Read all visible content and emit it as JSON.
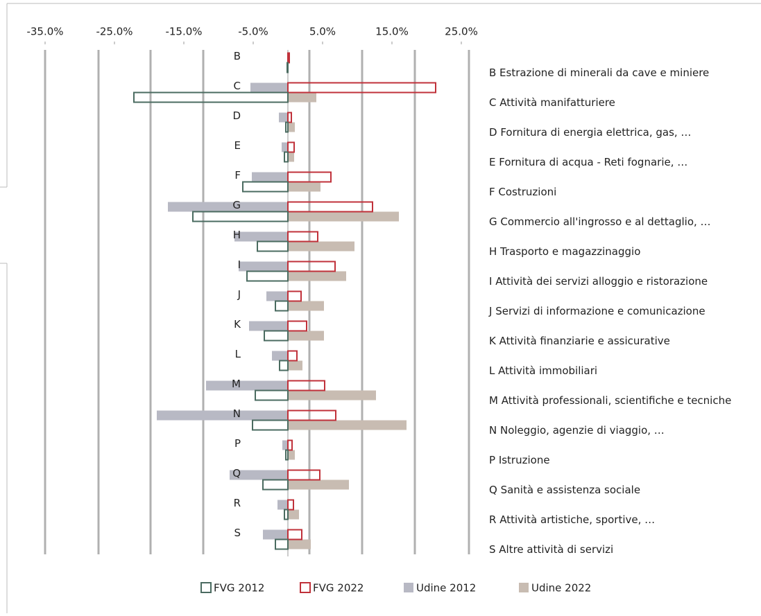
{
  "chart_data": {
    "type": "hbar",
    "categories": [
      "B",
      "C",
      "D",
      "E",
      "F",
      "G",
      "H",
      "I",
      "J",
      "K",
      "L",
      "M",
      "N",
      "P",
      "Q",
      "R",
      "S"
    ],
    "descriptions": [
      "B Estrazione di minerali da cave e miniere",
      "C Attività manifatturiere",
      "D Fornitura di energia elettrica, gas, …",
      "E Fornitura di acqua - Reti fognarie, …",
      "F Costruzioni",
      "G Commercio all'ingrosso e al dettaglio, …",
      "H Trasporto e magazzinaggio",
      "I Attività dei servizi alloggio e ristorazione",
      "J Servizi di informazione e comunicazione",
      "K Attività finanziarie e assicurative",
      "L Attività immobiliari",
      "M Attività professionali, scientifiche e tecniche",
      "N Noleggio, agenzie di viaggio, …",
      "P Istruzione",
      "Q Sanità e assistenza sociale",
      "R Attività artistiche, sportive, …",
      "S Altre attività di servizi"
    ],
    "series": [
      {
        "name": "FVG 2012",
        "color": "#4a6b60",
        "outline": true,
        "row": "lower",
        "values": [
          -0.1,
          -22.2,
          -0.3,
          -0.5,
          -6.5,
          -13.7,
          -4.4,
          -5.9,
          -1.8,
          -3.4,
          -1.2,
          -4.7,
          -5.1,
          -0.3,
          -3.6,
          -0.5,
          -1.8
        ]
      },
      {
        "name": "FVG 2022",
        "color": "#c0313a",
        "outline": true,
        "row": "upper",
        "values": [
          0.2,
          21.3,
          0.5,
          0.9,
          6.2,
          12.2,
          4.3,
          6.8,
          1.9,
          2.7,
          1.3,
          5.3,
          6.9,
          0.6,
          4.6,
          0.8,
          2.0
        ]
      },
      {
        "name": "Udine 2012",
        "color": "#b8b9c4",
        "outline": false,
        "row": "upper",
        "values": [
          0,
          -5.4,
          -1.3,
          -0.9,
          -5.2,
          -17.3,
          -7.7,
          -7.1,
          -3.1,
          -5.6,
          -2.3,
          -11.8,
          -18.9,
          -0.8,
          -8.4,
          -1.5,
          -3.6
        ]
      },
      {
        "name": "Udine 2022",
        "color": "#c8bcb2",
        "outline": false,
        "row": "lower",
        "values": [
          0,
          4.1,
          1.0,
          0.9,
          4.7,
          16.0,
          9.6,
          8.4,
          5.2,
          5.2,
          2.1,
          12.7,
          17.1,
          1.0,
          8.8,
          1.6,
          3.3
        ]
      }
    ],
    "xlim": [
      -38.5,
      27.5
    ],
    "xticks": [
      {
        "value": -35,
        "label": "-35.0%"
      },
      {
        "value": -25,
        "label": "-25.0%"
      },
      {
        "value": -15,
        "label": "-15.0%"
      },
      {
        "value": -5,
        "label": "-5.0%"
      },
      {
        "value": 5,
        "label": "5.0%"
      },
      {
        "value": 15,
        "label": "15.0%"
      },
      {
        "value": 25,
        "label": "25.0%"
      }
    ]
  }
}
